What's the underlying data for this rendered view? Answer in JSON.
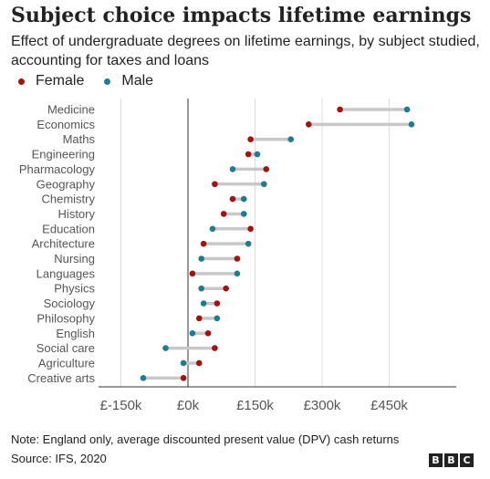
{
  "title": "Subject choice impacts lifetime earnings",
  "subtitle": "Effect of undergraduate degrees on lifetime earnings, by subject studied, accounting for taxes and loans",
  "legend": {
    "female": "Female",
    "male": "Male"
  },
  "colors": {
    "female": "#a3120d",
    "male": "#1f7b92",
    "connector": "#c8c8c8"
  },
  "note": "Note: England only, average discounted present value (DPV) cash returns",
  "source": "Source: IFS, 2020",
  "logo": [
    "B",
    "B",
    "C"
  ],
  "chart_data": {
    "type": "dumbbell",
    "x_unit": "£",
    "xlim": [
      -200000,
      600000
    ],
    "xticks": [
      -150000,
      0,
      150000,
      300000,
      450000
    ],
    "xtick_labels": [
      "£-150k",
      "£0k",
      "£150k",
      "£300k",
      "£450k"
    ],
    "grid": true,
    "legend_position": "top-left",
    "categories": [
      "Medicine",
      "Economics",
      "Maths",
      "Engineering",
      "Pharmacology",
      "Geography",
      "Chemistry",
      "History",
      "Education",
      "Architecture",
      "Nursing",
      "Languages",
      "Physics",
      "Sociology",
      "Philosophy",
      "English",
      "Social care",
      "Agriculture",
      "Creative arts"
    ],
    "series": [
      {
        "name": "Female",
        "values": [
          340000,
          270000,
          140000,
          135000,
          175000,
          60000,
          100000,
          80000,
          140000,
          35000,
          110000,
          10000,
          85000,
          65000,
          25000,
          45000,
          60000,
          25000,
          -10000
        ]
      },
      {
        "name": "Male",
        "values": [
          490000,
          500000,
          230000,
          155000,
          100000,
          170000,
          125000,
          125000,
          55000,
          135000,
          30000,
          110000,
          30000,
          35000,
          65000,
          10000,
          -50000,
          -10000,
          -100000
        ]
      }
    ]
  }
}
